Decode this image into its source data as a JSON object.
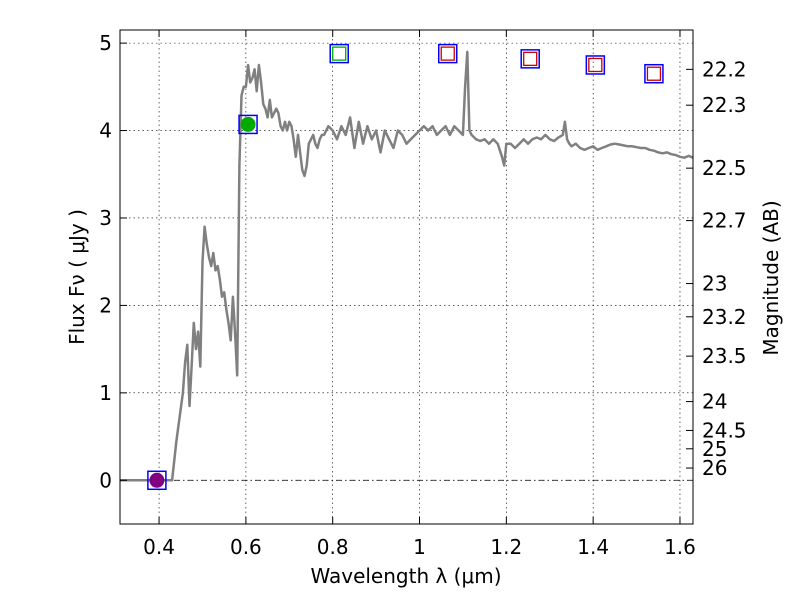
{
  "chart_data": {
    "type": "line",
    "xlabel": "Wavelength  λ (μm)",
    "ylabel": "Flux  Fν  ( μJy )",
    "y2label": "Magnitude (AB)",
    "xlim": [
      0.31,
      1.63
    ],
    "ylim": [
      -0.5,
      5.15
    ],
    "grid": true,
    "x_ticks": [
      0.4,
      0.6,
      0.8,
      1.0,
      1.2,
      1.4,
      1.6
    ],
    "x_tick_labels": [
      "0.4",
      "0.6",
      "0.8",
      "1",
      "1.2",
      "1.4",
      "1.6"
    ],
    "y_ticks": [
      0,
      1,
      2,
      3,
      4,
      5
    ],
    "y_tick_labels": [
      "0",
      "1",
      "2",
      "3",
      "4",
      "5"
    ],
    "y2_ticks": [
      {
        "label": "22.2",
        "flux": 4.7
      },
      {
        "label": "22.3",
        "flux": 4.29
      },
      {
        "label": "22.5",
        "flux": 3.57
      },
      {
        "label": "22.7",
        "flux": 2.97
      },
      {
        "label": "23",
        "flux": 2.25
      },
      {
        "label": "23.2",
        "flux": 1.87
      },
      {
        "label": "23.5",
        "flux": 1.42
      },
      {
        "label": "24",
        "flux": 0.9
      },
      {
        "label": "24.5",
        "flux": 0.57
      },
      {
        "label": "25",
        "flux": 0.36
      },
      {
        "label": "26",
        "flux": 0.14
      }
    ],
    "zero_line": 0,
    "series": [
      {
        "type": "line",
        "color": "#808080",
        "x": [
          0.31,
          0.43,
          0.44,
          0.455,
          0.46,
          0.465,
          0.47,
          0.475,
          0.48,
          0.485,
          0.49,
          0.495,
          0.5,
          0.505,
          0.51,
          0.515,
          0.52,
          0.525,
          0.53,
          0.535,
          0.54,
          0.545,
          0.55,
          0.555,
          0.56,
          0.565,
          0.57,
          0.575,
          0.58,
          0.585,
          0.59,
          0.595,
          0.6,
          0.605,
          0.61,
          0.615,
          0.62,
          0.625,
          0.63,
          0.635,
          0.64,
          0.645,
          0.65,
          0.655,
          0.66,
          0.665,
          0.67,
          0.675,
          0.68,
          0.685,
          0.69,
          0.695,
          0.7,
          0.705,
          0.71,
          0.715,
          0.72,
          0.725,
          0.73,
          0.735,
          0.74,
          0.745,
          0.75,
          0.755,
          0.76,
          0.765,
          0.77,
          0.775,
          0.78,
          0.79,
          0.8,
          0.81,
          0.82,
          0.83,
          0.84,
          0.85,
          0.86,
          0.87,
          0.88,
          0.89,
          0.9,
          0.91,
          0.92,
          0.93,
          0.94,
          0.95,
          0.96,
          0.97,
          0.98,
          0.99,
          1.0,
          1.01,
          1.02,
          1.03,
          1.04,
          1.05,
          1.06,
          1.07,
          1.08,
          1.09,
          1.1,
          1.105,
          1.11,
          1.115,
          1.12,
          1.13,
          1.14,
          1.15,
          1.16,
          1.17,
          1.18,
          1.19,
          1.195,
          1.2,
          1.21,
          1.22,
          1.23,
          1.24,
          1.25,
          1.26,
          1.27,
          1.28,
          1.29,
          1.3,
          1.31,
          1.32,
          1.33,
          1.335,
          1.34,
          1.345,
          1.35,
          1.36,
          1.37,
          1.38,
          1.39,
          1.4,
          1.41,
          1.42,
          1.43,
          1.44,
          1.45,
          1.46,
          1.47,
          1.48,
          1.49,
          1.5,
          1.51,
          1.52,
          1.53,
          1.54,
          1.55,
          1.56,
          1.57,
          1.58,
          1.59,
          1.6,
          1.61,
          1.62,
          1.63
        ],
        "values": [
          0.0,
          0.0,
          0.45,
          1.0,
          1.35,
          1.55,
          0.85,
          1.3,
          1.8,
          1.5,
          1.7,
          1.3,
          2.5,
          2.9,
          2.7,
          2.55,
          2.45,
          2.6,
          2.4,
          2.45,
          2.3,
          2.1,
          2.15,
          1.95,
          1.8,
          1.6,
          2.1,
          1.7,
          1.2,
          3.6,
          4.4,
          4.5,
          4.5,
          4.75,
          4.55,
          4.6,
          4.7,
          4.45,
          4.75,
          4.55,
          4.3,
          4.25,
          4.15,
          4.35,
          4.15,
          4.2,
          4.25,
          4.2,
          4.05,
          4.0,
          4.1,
          4.0,
          4.1,
          4.05,
          3.9,
          3.7,
          3.95,
          3.75,
          3.55,
          3.48,
          3.6,
          3.85,
          3.9,
          3.95,
          3.85,
          3.8,
          3.9,
          3.95,
          3.95,
          4.05,
          4.0,
          3.9,
          4.05,
          3.95,
          4.15,
          3.8,
          4.1,
          3.85,
          4.05,
          3.9,
          4.0,
          3.75,
          4.0,
          3.9,
          3.8,
          4.0,
          3.95,
          3.85,
          3.9,
          3.95,
          4.0,
          4.05,
          4.0,
          4.05,
          3.95,
          4.0,
          4.05,
          3.95,
          4.05,
          4.0,
          3.95,
          4.5,
          4.9,
          4.0,
          3.95,
          3.9,
          3.88,
          3.9,
          3.85,
          3.9,
          3.85,
          3.7,
          3.6,
          3.85,
          3.85,
          3.8,
          3.85,
          3.9,
          3.85,
          3.9,
          3.92,
          3.9,
          3.95,
          3.9,
          3.88,
          3.92,
          3.95,
          4.1,
          3.9,
          3.85,
          3.82,
          3.85,
          3.8,
          3.78,
          3.8,
          3.82,
          3.78,
          3.8,
          3.82,
          3.84,
          3.85,
          3.84,
          3.83,
          3.82,
          3.82,
          3.81,
          3.8,
          3.8,
          3.78,
          3.77,
          3.75,
          3.74,
          3.75,
          3.73,
          3.72,
          3.7,
          3.69,
          3.71,
          3.69
        ]
      }
    ],
    "markers": [
      {
        "x": 0.395,
        "flux": 0.0,
        "outer": "#0000ff",
        "inner": "#800080",
        "filled": true,
        "shape": "square-with-dot"
      },
      {
        "x": 0.605,
        "flux": 4.07,
        "outer": "#0000ff",
        "inner": "#00aa00",
        "filled": true,
        "shape": "square-with-dot"
      },
      {
        "x": 0.815,
        "flux": 4.88,
        "outer": "#0000ff",
        "inner": "#00aa00",
        "filled": false,
        "shape": "square-in-square"
      },
      {
        "x": 1.065,
        "flux": 4.88,
        "outer": "#0000ff",
        "inner": "#cc0000",
        "filled": false,
        "shape": "square-in-square"
      },
      {
        "x": 1.255,
        "flux": 4.82,
        "outer": "#0000ff",
        "inner": "#cc0000",
        "filled": false,
        "shape": "square-in-square"
      },
      {
        "x": 1.405,
        "flux": 4.75,
        "outer": "#0000ff",
        "inner": "#cc0000",
        "filled": false,
        "shape": "square-in-square"
      },
      {
        "x": 1.54,
        "flux": 4.65,
        "outer": "#0000ff",
        "inner": "#cc0000",
        "filled": false,
        "shape": "square-in-square"
      }
    ]
  }
}
